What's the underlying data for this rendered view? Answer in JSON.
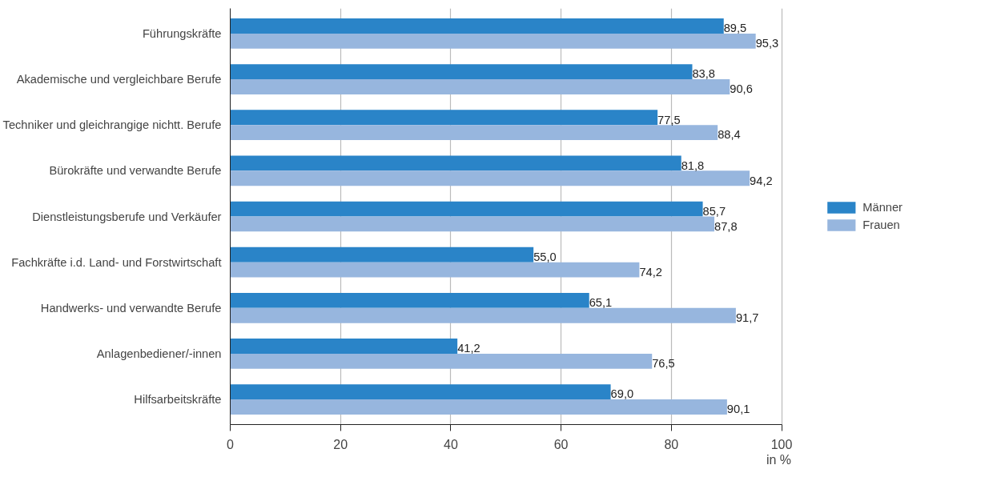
{
  "chart_data": {
    "type": "bar",
    "orientation": "horizontal",
    "xlabel": "in %",
    "categories": [
      "Führungskräfte",
      "Akademische und vergleichbare Berufe",
      "Techniker und gleichrangige nichtt. Berufe",
      "Bürokräfte und verwandte Berufe",
      "Dienstleistungsberufe und Verkäufer",
      "Fachkräfte i.d. Land- und Forstwirtschaft",
      "Handwerks- und verwandte Berufe",
      "Anlagenbediener/-innen",
      "Hilfsarbeitskräfte"
    ],
    "series": [
      {
        "name": "Männer",
        "color": "#2a84c8",
        "values": [
          89.5,
          83.8,
          77.5,
          81.8,
          85.7,
          55.0,
          65.1,
          41.2,
          69.0
        ],
        "value_labels": [
          "89,5",
          "83,8",
          "77,5",
          "81,8",
          "85,7",
          "55,0",
          "65,1",
          "41,2",
          "69,0"
        ]
      },
      {
        "name": "Frauen",
        "color": "#97b6de",
        "values": [
          95.3,
          90.6,
          88.4,
          94.2,
          87.8,
          74.2,
          91.7,
          76.5,
          90.1
        ],
        "value_labels": [
          "95,3",
          "90,6",
          "88,4",
          "94,2",
          "87,8",
          "74,2",
          "91,7",
          "76,5",
          "90,1"
        ]
      }
    ],
    "xlim": [
      0,
      100
    ],
    "xticks": [
      0,
      20,
      40,
      60,
      80,
      100
    ],
    "grid": "x",
    "legend": "right"
  }
}
